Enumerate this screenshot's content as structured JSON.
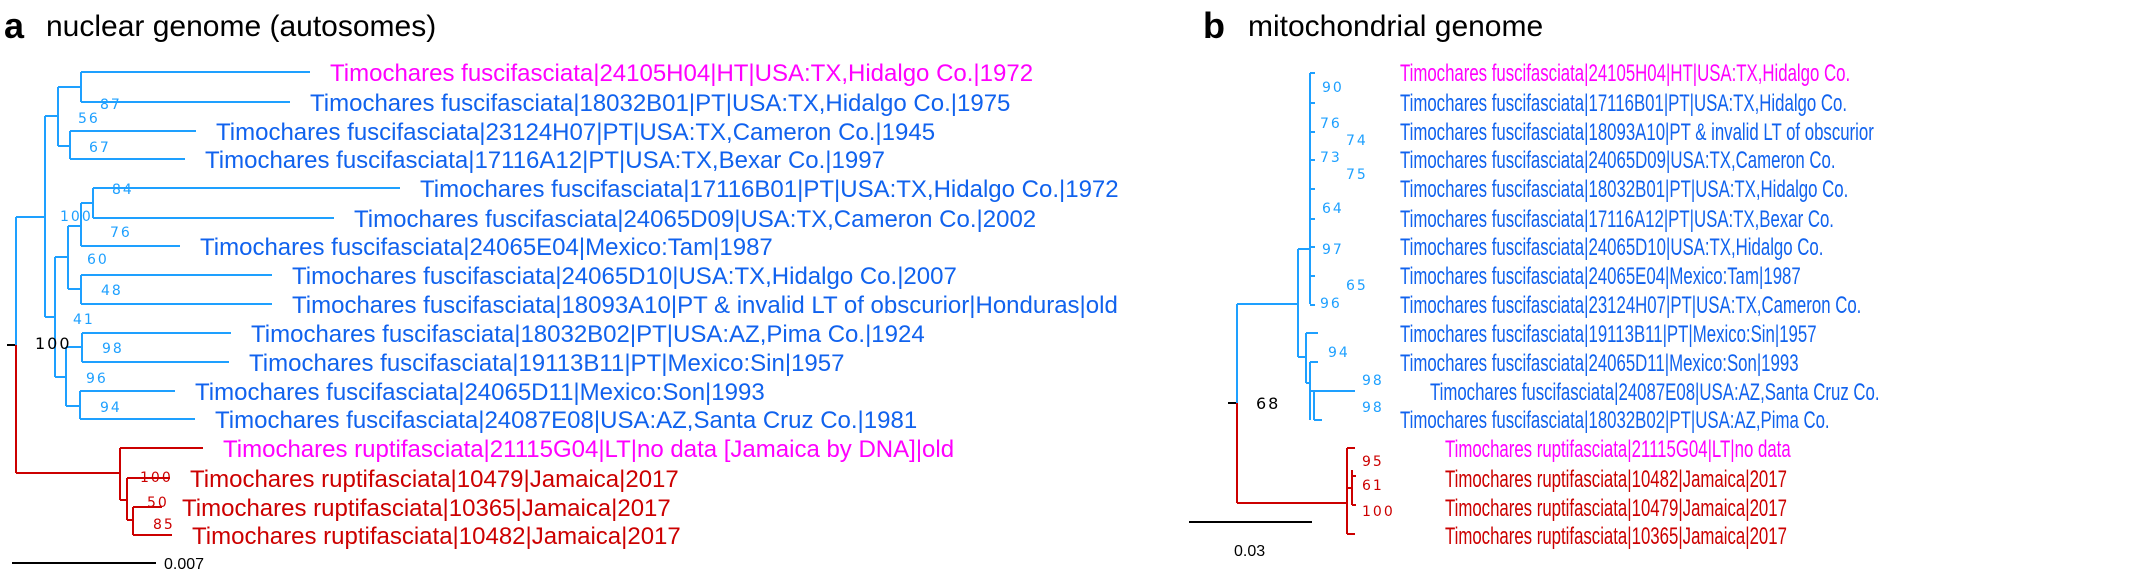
{
  "colors": {
    "fuscifasciata_label": "#1062ee",
    "fuscifasciata_branch": "#1ea0ff",
    "ruptifasciata": "#cc0000",
    "type_specimen": "#ff00ff",
    "root": "#000000"
  },
  "panel_a": {
    "letter": "a",
    "title": "nuclear genome (autosomes)",
    "tips": [
      {
        "label": "Timochares fuscifasciata|24105H04|HT|USA:TX,Hidalgo Co.|1972",
        "color": "type_specimen"
      },
      {
        "label": "Timochares fuscifasciata|18032B01|PT|USA:TX,Hidalgo Co.|1975",
        "color": "fuscifasciata_label"
      },
      {
        "label": "Timochares fuscifasciata|23124H07|PT|USA:TX,Cameron Co.|1945",
        "color": "fuscifasciata_label"
      },
      {
        "label": "Timochares fuscifasciata|17116A12|PT|USA:TX,Bexar Co.|1997",
        "color": "fuscifasciata_label"
      },
      {
        "label": "Timochares fuscifasciata|17116B01|PT|USA:TX,Hidalgo Co.|1972",
        "color": "fuscifasciata_label"
      },
      {
        "label": "Timochares fuscifasciata|24065D09|USA:TX,Cameron Co.|2002",
        "color": "fuscifasciata_label"
      },
      {
        "label": "Timochares fuscifasciata|24065E04|Mexico:Tam|1987",
        "color": "fuscifasciata_label"
      },
      {
        "label": "Timochares fuscifasciata|24065D10|USA:TX,Hidalgo Co.|2007",
        "color": "fuscifasciata_label"
      },
      {
        "label": "Timochares fuscifasciata|18093A10|PT & invalid LT of obscurior|Honduras|old",
        "color": "fuscifasciata_label"
      },
      {
        "label": "Timochares fuscifasciata|18032B02|PT|USA:AZ,Pima Co.|1924",
        "color": "fuscifasciata_label"
      },
      {
        "label": "Timochares fuscifasciata|19113B11|PT|Mexico:Sin|1957",
        "color": "fuscifasciata_label"
      },
      {
        "label": "Timochares fuscifasciata|24065D11|Mexico:Son|1993",
        "color": "fuscifasciata_label"
      },
      {
        "label": "Timochares fuscifasciata|24087E08|USA:AZ,Santa Cruz Co.|1981",
        "color": "fuscifasciata_label"
      },
      {
        "label": "Timochares ruptifasciata|21115G04|LT|no data [Jamaica by DNA]|old",
        "color": "type_specimen"
      },
      {
        "label": "Timochares ruptifasciata|10479|Jamaica|2017",
        "color": "ruptifasciata"
      },
      {
        "label": "Timochares ruptifasciata|10365|Jamaica|2017",
        "color": "ruptifasciata"
      },
      {
        "label": "Timochares ruptifasciata|10482|Jamaica|2017",
        "color": "ruptifasciata"
      }
    ],
    "support": [
      {
        "value": "87",
        "color": "fuscifasciata_branch"
      },
      {
        "value": "56",
        "color": "fuscifasciata_branch"
      },
      {
        "value": "67",
        "color": "fuscifasciata_branch"
      },
      {
        "value": "84",
        "color": "fuscifasciata_branch"
      },
      {
        "value": "100",
        "color": "fuscifasciata_branch"
      },
      {
        "value": "76",
        "color": "fuscifasciata_branch"
      },
      {
        "value": "60",
        "color": "fuscifasciata_branch"
      },
      {
        "value": "48",
        "color": "fuscifasciata_branch"
      },
      {
        "value": "41",
        "color": "fuscifasciata_branch"
      },
      {
        "value": "98",
        "color": "fuscifasciata_branch"
      },
      {
        "value": "96",
        "color": "fuscifasciata_branch"
      },
      {
        "value": "94",
        "color": "fuscifasciata_branch"
      },
      {
        "value": "100",
        "color": "root"
      },
      {
        "value": "100",
        "color": "ruptifasciata"
      },
      {
        "value": "50",
        "color": "ruptifasciata"
      },
      {
        "value": "85",
        "color": "ruptifasciata"
      }
    ],
    "scale_bar": "0.007"
  },
  "panel_b": {
    "letter": "b",
    "title": "mitochondrial genome",
    "tips": [
      {
        "label": "Timochares fuscifasciata|24105H04|HT|USA:TX,Hidalgo Co.",
        "color": "type_specimen"
      },
      {
        "label": "Timochares fuscifasciata|17116B01|PT|USA:TX,Hidalgo Co.",
        "color": "fuscifasciata_label"
      },
      {
        "label": "Timochares fuscifasciata|18093A10|PT & invalid LT of obscurior",
        "color": "fuscifasciata_label"
      },
      {
        "label": "Timochares fuscifasciata|24065D09|USA:TX,Cameron Co.",
        "color": "fuscifasciata_label"
      },
      {
        "label": "Timochares fuscifasciata|18032B01|PT|USA:TX,Hidalgo Co.",
        "color": "fuscifasciata_label"
      },
      {
        "label": "Timochares fuscifasciata|17116A12|PT|USA:TX,Bexar Co.",
        "color": "fuscifasciata_label"
      },
      {
        "label": "Timochares fuscifasciata|24065D10|USA:TX,Hidalgo Co.",
        "color": "fuscifasciata_label"
      },
      {
        "label": "Timochares fuscifasciata|24065E04|Mexico:Tam|1987",
        "color": "fuscifasciata_label"
      },
      {
        "label": "Timochares fuscifasciata|23124H07|PT|USA:TX,Cameron Co.",
        "color": "fuscifasciata_label"
      },
      {
        "label": "Timochares fuscifasciata|19113B11|PT|Mexico:Sin|1957",
        "color": "fuscifasciata_label"
      },
      {
        "label": "Timochares fuscifasciata|24065D11|Mexico:Son|1993",
        "color": "fuscifasciata_label"
      },
      {
        "label": "Timochares fuscifasciata|24087E08|USA:AZ,Santa Cruz Co.",
        "color": "fuscifasciata_label"
      },
      {
        "label": "Timochares fuscifasciata|18032B02|PT|USA:AZ,Pima Co.",
        "color": "fuscifasciata_label"
      },
      {
        "label": "Timochares ruptifasciata|21115G04|LT|no data",
        "color": "type_specimen"
      },
      {
        "label": "Timochares ruptifasciata|10482|Jamaica|2017",
        "color": "ruptifasciata"
      },
      {
        "label": "Timochares ruptifasciata|10479|Jamaica|2017",
        "color": "ruptifasciata"
      },
      {
        "label": "Timochares ruptifasciata|10365|Jamaica|2017",
        "color": "ruptifasciata"
      }
    ],
    "support": [
      {
        "value": "90",
        "color": "fuscifasciata_branch"
      },
      {
        "value": "76",
        "color": "fuscifasciata_branch"
      },
      {
        "value": "74",
        "color": "fuscifasciata_branch"
      },
      {
        "value": "73",
        "color": "fuscifasciata_branch"
      },
      {
        "value": "75",
        "color": "fuscifasciata_branch"
      },
      {
        "value": "64",
        "color": "fuscifasciata_branch"
      },
      {
        "value": "97",
        "color": "fuscifasciata_branch"
      },
      {
        "value": "65",
        "color": "fuscifasciata_branch"
      },
      {
        "value": "96",
        "color": "fuscifasciata_branch"
      },
      {
        "value": "94",
        "color": "fuscifasciata_branch"
      },
      {
        "value": "98",
        "color": "fuscifasciata_branch"
      },
      {
        "value": "98",
        "color": "fuscifasciata_branch"
      },
      {
        "value": "68",
        "color": "root"
      },
      {
        "value": "95",
        "color": "ruptifasciata"
      },
      {
        "value": "61",
        "color": "ruptifasciata"
      },
      {
        "value": "100",
        "color": "ruptifasciata"
      }
    ],
    "scale_bar": "0.03"
  }
}
